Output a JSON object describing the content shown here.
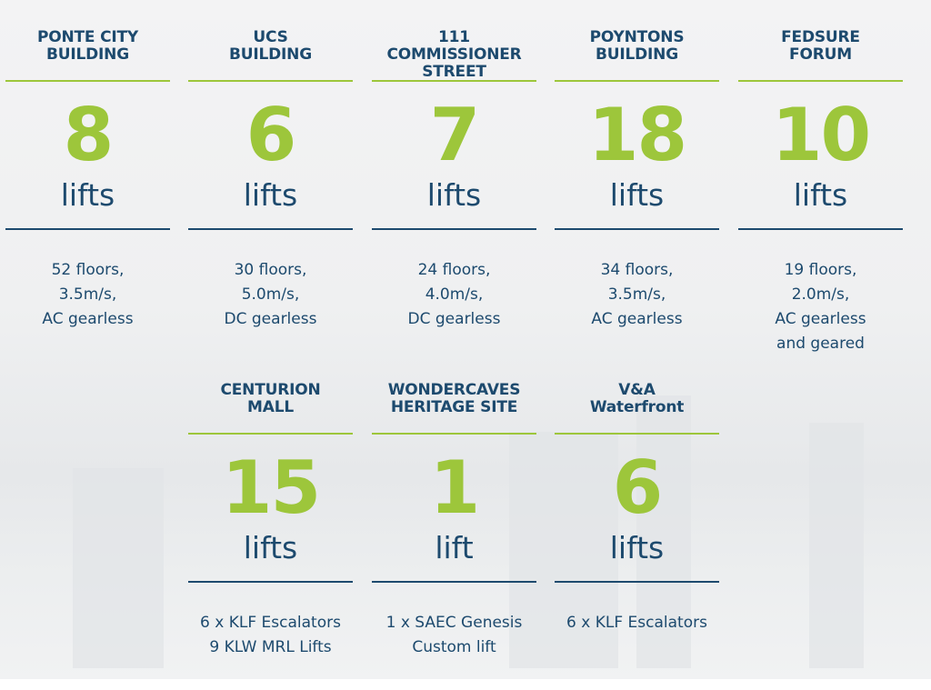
{
  "colors": {
    "accent": "#9dc63b",
    "text": "#1d4a6e"
  },
  "cards": [
    {
      "title": [
        "PONTE CITY",
        "BUILDING"
      ],
      "count": "8",
      "unit": "lifts",
      "details": [
        "52 floors,",
        "3.5m/s,",
        "AC gearless"
      ]
    },
    {
      "title": [
        "UCS",
        "BUILDING"
      ],
      "count": "6",
      "unit": "lifts",
      "details": [
        "30 floors,",
        "5.0m/s,",
        "DC gearless"
      ]
    },
    {
      "title": [
        "111 COMMISSIONER",
        "STREET"
      ],
      "count": "7",
      "unit": "lifts",
      "details": [
        "24 floors,",
        "4.0m/s,",
        "DC gearless"
      ]
    },
    {
      "title": [
        "POYNTONS",
        "BUILDING"
      ],
      "count": "18",
      "unit": "lifts",
      "details": [
        "34 floors,",
        "3.5m/s,",
        "AC gearless"
      ]
    },
    {
      "title": [
        "FEDSURE",
        "FORUM"
      ],
      "count": "10",
      "unit": "lifts",
      "details": [
        "19 floors,",
        "2.0m/s,",
        "AC gearless",
        "and geared"
      ]
    },
    {
      "title": [
        "CENTURION",
        "MALL"
      ],
      "count": "15",
      "unit": "lifts",
      "details": [
        "6 x KLF Escalators",
        "9 KLW MRL Lifts"
      ]
    },
    {
      "title": [
        "WONDERCAVES",
        "HERITAGE SITE"
      ],
      "count": "1",
      "unit": "lift",
      "details": [
        "1 x SAEC Genesis",
        "Custom lift"
      ]
    },
    {
      "title": [
        "V&A",
        "Waterfront"
      ],
      "count": "6",
      "unit": "lifts",
      "details": [
        "6 x KLF Escalators"
      ]
    }
  ]
}
